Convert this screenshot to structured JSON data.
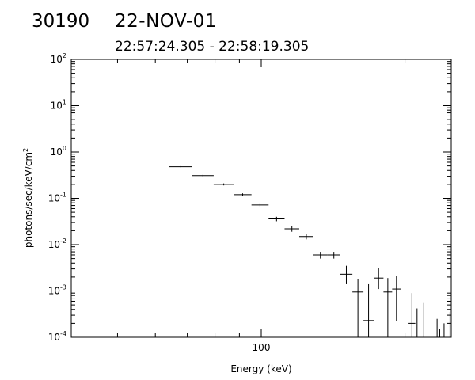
{
  "header": {
    "observation_id": "30190",
    "date": "22-NOV-01",
    "time_range": "22:57:24.305 - 22:58:19.305"
  },
  "chart_data": {
    "type": "scatter",
    "style": "error-bar crosses",
    "xlabel": "Energy (keV)",
    "ylabel": "photons/sec/keV/cm",
    "ylabel_superscript": "2",
    "xscale": "log",
    "yscale": "log",
    "xlim": [
      40,
      250
    ],
    "ylim": [
      0.0001,
      100
    ],
    "x_ticks": [
      {
        "value": 100,
        "label": "100"
      }
    ],
    "y_ticks": [
      {
        "value": 0.0001,
        "base": "10",
        "exp": "-4"
      },
      {
        "value": 0.001,
        "base": "10",
        "exp": "-3"
      },
      {
        "value": 0.01,
        "base": "10",
        "exp": "-2"
      },
      {
        "value": 0.1,
        "base": "10",
        "exp": "-1"
      },
      {
        "value": 1,
        "base": "10",
        "exp": "0"
      },
      {
        "value": 10,
        "base": "10",
        "exp": "1"
      },
      {
        "value": 100,
        "base": "10",
        "exp": "2"
      }
    ],
    "points": [
      {
        "x_lo": 64.2,
        "x_hi": 71.7,
        "y": 0.48,
        "y_lo": 0.46,
        "y_hi": 0.5
      },
      {
        "x_lo": 71.7,
        "x_hi": 79.5,
        "y": 0.31,
        "y_lo": 0.295,
        "y_hi": 0.325
      },
      {
        "x_lo": 79.5,
        "x_hi": 87.6,
        "y": 0.2,
        "y_lo": 0.19,
        "y_hi": 0.21
      },
      {
        "x_lo": 87.6,
        "x_hi": 95.4,
        "y": 0.12,
        "y_lo": 0.112,
        "y_hi": 0.128
      },
      {
        "x_lo": 95.4,
        "x_hi": 103.6,
        "y": 0.072,
        "y_lo": 0.066,
        "y_hi": 0.078
      },
      {
        "x_lo": 103.6,
        "x_hi": 111.9,
        "y": 0.036,
        "y_lo": 0.032,
        "y_hi": 0.04
      },
      {
        "x_lo": 111.9,
        "x_hi": 120.1,
        "y": 0.022,
        "y_lo": 0.019,
        "y_hi": 0.025
      },
      {
        "x_lo": 120.1,
        "x_hi": 128.6,
        "y": 0.015,
        "y_lo": 0.013,
        "y_hi": 0.017
      },
      {
        "x_lo": 128.6,
        "x_hi": 137.6,
        "y": 0.006,
        "y_lo": 0.005,
        "y_hi": 0.007
      },
      {
        "x_lo": 137.6,
        "x_hi": 146.4,
        "y": 0.006,
        "y_lo": 0.005,
        "y_hi": 0.007
      },
      {
        "x_lo": 146.4,
        "x_hi": 155.2,
        "y": 0.0023,
        "y_lo": 0.0014,
        "y_hi": 0.0035
      },
      {
        "x_lo": 155.2,
        "x_hi": 163.7,
        "y": 0.00095,
        "y_lo": 0.0001,
        "y_hi": 0.0018
      },
      {
        "x_lo": 163.7,
        "x_hi": 172.0,
        "y": 0.00023,
        "y_lo": 0.0001,
        "y_hi": 0.0014
      },
      {
        "x_lo": 172.0,
        "x_hi": 180.3,
        "y": 0.0019,
        "y_lo": 0.0011,
        "y_hi": 0.0031
      },
      {
        "x_lo": 180.3,
        "x_hi": 188.0,
        "y": 0.00095,
        "y_lo": 0.0001,
        "y_hi": 0.0019
      },
      {
        "x_lo": 188.0,
        "x_hi": 196.0,
        "y": 0.0011,
        "y_lo": 0.00022,
        "y_hi": 0.0021
      },
      {
        "x_lo": 203.5,
        "x_hi": 210.2,
        "y": 0.0002,
        "y_lo": 0.0001,
        "y_hi": 0.0009
      },
      {
        "x_lo": 212.0,
        "x_hi": 212.0,
        "y": 0.0001,
        "y_lo": 0.0001,
        "y_hi": 0.00042
      },
      {
        "x_lo": 219.0,
        "x_hi": 219.0,
        "y": 0.0001,
        "y_lo": 0.0001,
        "y_hi": 0.00055
      },
      {
        "x_lo": 233.5,
        "x_hi": 233.5,
        "y": 0.0001,
        "y_lo": 0.0001,
        "y_hi": 0.00025
      },
      {
        "x_lo": 236.5,
        "x_hi": 236.5,
        "y": 0.0001,
        "y_lo": 0.0001,
        "y_hi": 0.00015
      },
      {
        "x_lo": 241.5,
        "x_hi": 241.5,
        "y": 0.0001,
        "y_lo": 0.0001,
        "y_hi": 0.0002
      },
      {
        "x_lo": 248.5,
        "x_hi": 248.5,
        "y": 0.00012,
        "y_lo": 0.0001,
        "y_hi": 0.00035
      }
    ]
  }
}
